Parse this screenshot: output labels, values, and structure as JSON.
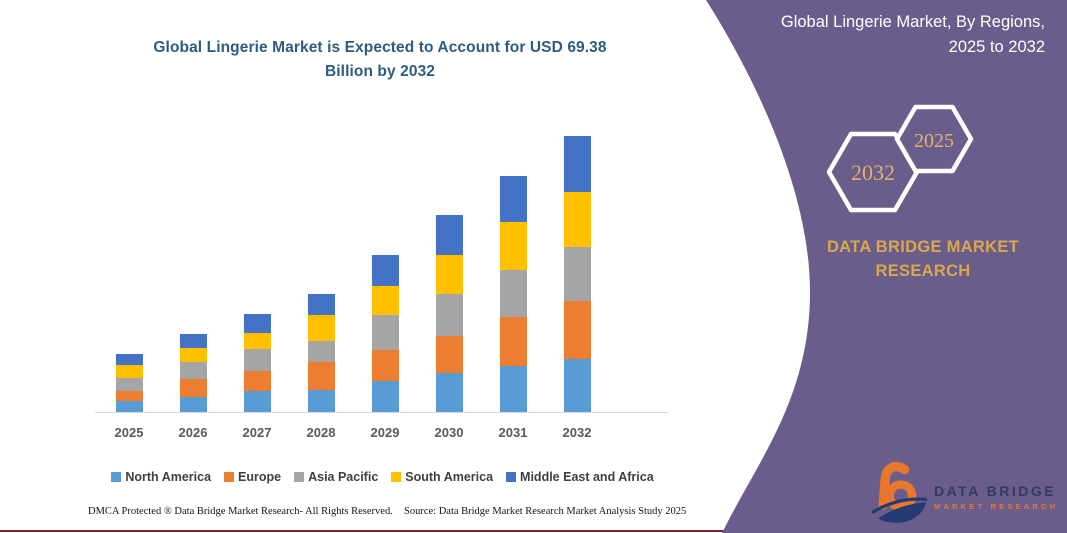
{
  "chart": {
    "title_line1": "Global Lingerie Market is Expected to Account for USD 69.38",
    "title_line2": "Billion by 2032",
    "footer_dmca": "DMCA Protected ® Data Bridge Market Research-  All Rights Reserved.",
    "footer_source": "Source: Data Bridge Market Research  Market Analysis Study 2025"
  },
  "chart_data": {
    "type": "bar",
    "stacked": true,
    "title": "Global Lingerie Market is Expected to Account for USD 69.38 Billion by 2032",
    "xlabel": "",
    "ylabel": "",
    "ylim": [
      0,
      70
    ],
    "grid": false,
    "legend_position": "bottom",
    "axis_color": "#D9D9D9",
    "total_2032_usd_billion": 69.38,
    "categories": [
      "2025",
      "2026",
      "2027",
      "2028",
      "2029",
      "2030",
      "2031",
      "2032"
    ],
    "series": [
      {
        "name": "North America",
        "color": "#5B9BD5",
        "values": [
          2.9,
          3.7,
          5.2,
          5.6,
          7.7,
          9.8,
          11.7,
          13.4
        ]
      },
      {
        "name": "Europe",
        "color": "#ED7D31",
        "values": [
          2.5,
          4.7,
          5.0,
          7.0,
          8.0,
          9.4,
          12.1,
          14.4
        ]
      },
      {
        "name": "Asia Pacific",
        "color": "#A5A5A5",
        "values": [
          3.2,
          4.2,
          5.7,
          5.2,
          8.6,
          10.5,
          12.0,
          13.6
        ]
      },
      {
        "name": "South America",
        "color": "#FFC000",
        "values": [
          3.2,
          3.4,
          3.9,
          6.5,
          7.5,
          9.7,
          11.9,
          13.8
        ]
      },
      {
        "name": "Middle East and Africa",
        "color": "#4472C4",
        "values": [
          2.8,
          3.7,
          4.8,
          5.4,
          7.6,
          10.2,
          11.8,
          14.2
        ]
      }
    ],
    "totals_by_year": [
      14.6,
      19.7,
      24.6,
      29.7,
      39.4,
      49.6,
      59.5,
      69.4
    ]
  },
  "panel": {
    "title_line1": "Global Lingerie Market, By Regions,",
    "title_line2": "2025 to 2032",
    "hexagon_back_label": "2032",
    "hexagon_front_label": "2025",
    "brand_line1": "DATA BRIDGE MARKET",
    "brand_line2": "RESEARCH",
    "logo_title": "DATA BRIDGE",
    "logo_subtitle": "MARKET RESEARCH",
    "colors": {
      "panel_purple": "#6A5D8C",
      "gold": "#D9A84B",
      "hex_year_gold": "#E0B26A",
      "title_white": "#FFFFFF",
      "logo_navy": "#243B73",
      "logo_orange": "#E8762C",
      "left_title_blue": "#2E5B7F",
      "bottom_line_maroon": "#7A2430"
    }
  }
}
